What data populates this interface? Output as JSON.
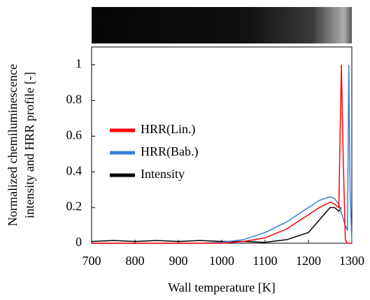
{
  "chart_data": {
    "type": "line",
    "ylabel": [
      "Normalized chemiluminescence",
      "intensity and HRR profile [-]"
    ],
    "xlabel": "Wall temperature [K]",
    "x": [
      700,
      750,
      800,
      850,
      900,
      950,
      1000,
      1050,
      1100,
      1150,
      1200,
      1225,
      1250,
      1260,
      1270,
      1276,
      1280,
      1285,
      1290,
      1293,
      1296,
      1300
    ],
    "series": [
      {
        "name": "HRR(Lin.)",
        "color": "#ff0000",
        "values": [
          0,
          0,
          0,
          0,
          0,
          0,
          0,
          0.01,
          0.03,
          0.08,
          0.16,
          0.2,
          0.23,
          0.22,
          0.2,
          1.0,
          0.5,
          0.02,
          0,
          0,
          0,
          0
        ]
      },
      {
        "name": "HRR(Bab.)",
        "color": "#3b7fd9",
        "values": [
          0,
          0,
          0,
          0,
          0,
          0,
          0.005,
          0.02,
          0.06,
          0.12,
          0.2,
          0.24,
          0.26,
          0.25,
          0.22,
          0.17,
          0.14,
          0.1,
          0.07,
          1.0,
          0.3,
          0
        ]
      },
      {
        "name": "Intensity",
        "color": "#000000",
        "values": [
          0.01,
          0.015,
          0.01,
          0.015,
          0.01,
          0.015,
          0.01,
          0.01,
          0.005,
          0.02,
          0.06,
          0.13,
          0.2,
          0.2,
          0.18,
          0.2,
          null,
          null,
          null,
          null,
          null,
          null
        ]
      }
    ],
    "xlim": [
      700,
      1300
    ],
    "xticks": [
      700,
      800,
      900,
      1000,
      1100,
      1200,
      1300
    ],
    "ylim": [
      0,
      1.1
    ],
    "yticks": [
      0,
      0.2,
      0.4,
      0.6,
      0.8,
      1
    ],
    "legend": "left",
    "grid": false
  }
}
